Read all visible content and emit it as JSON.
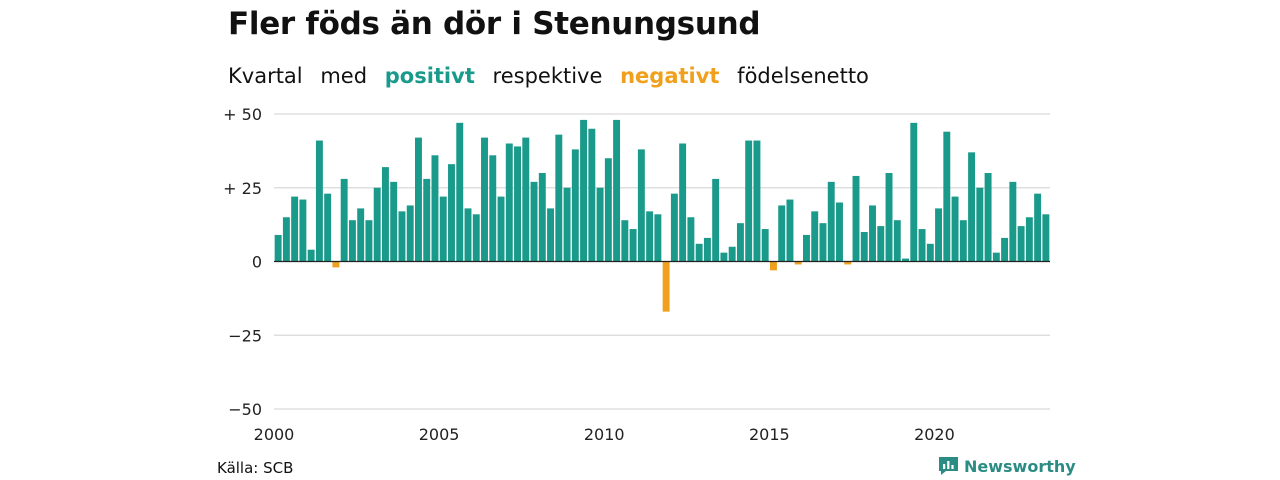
{
  "title": "Fler föds än dör i Stenungsund",
  "subtitle": {
    "w1": "Kvartal",
    "w2": "med",
    "positive": "positivt",
    "w3": "respektive",
    "negative": "negativt",
    "w4": "födelsenetto"
  },
  "source": "Källa: SCB",
  "brand": "Newsworthy",
  "colors": {
    "positive": "#1a9a8a",
    "negative": "#f0a01c",
    "brand": "#2b8c84"
  },
  "chart_data": {
    "type": "bar",
    "title": "Fler föds än dör i Stenungsund",
    "xlabel": "",
    "ylabel": "",
    "x_start_year": 2000,
    "periods_per_year": 4,
    "ylim": [
      -50,
      50
    ],
    "y_ticks": [
      50,
      25,
      0,
      -25,
      -50
    ],
    "y_tick_labels": [
      "+ 50",
      "+ 25",
      "0",
      "−25",
      "−50"
    ],
    "x_ticks": [
      2000,
      2005,
      2010,
      2015,
      2020
    ],
    "x_tick_labels": [
      "2000",
      "2005",
      "2010",
      "2015",
      "2020"
    ],
    "grid": true,
    "values": [
      9,
      15,
      22,
      21,
      4,
      41,
      23,
      -2,
      28,
      14,
      18,
      14,
      25,
      32,
      27,
      17,
      19,
      42,
      28,
      36,
      22,
      33,
      47,
      18,
      16,
      42,
      36,
      22,
      40,
      39,
      42,
      27,
      30,
      18,
      43,
      25,
      38,
      48,
      45,
      25,
      35,
      48,
      14,
      11,
      38,
      17,
      16,
      -17,
      23,
      40,
      15,
      6,
      8,
      28,
      3,
      5,
      13,
      41,
      41,
      11,
      -3,
      19,
      21,
      -1,
      9,
      17,
      13,
      27,
      20,
      -1,
      29,
      10,
      19,
      12,
      30,
      14,
      1,
      47,
      11,
      6,
      18,
      44,
      22,
      14,
      37,
      25,
      30,
      3,
      8,
      27,
      12,
      15,
      23,
      16
    ]
  }
}
